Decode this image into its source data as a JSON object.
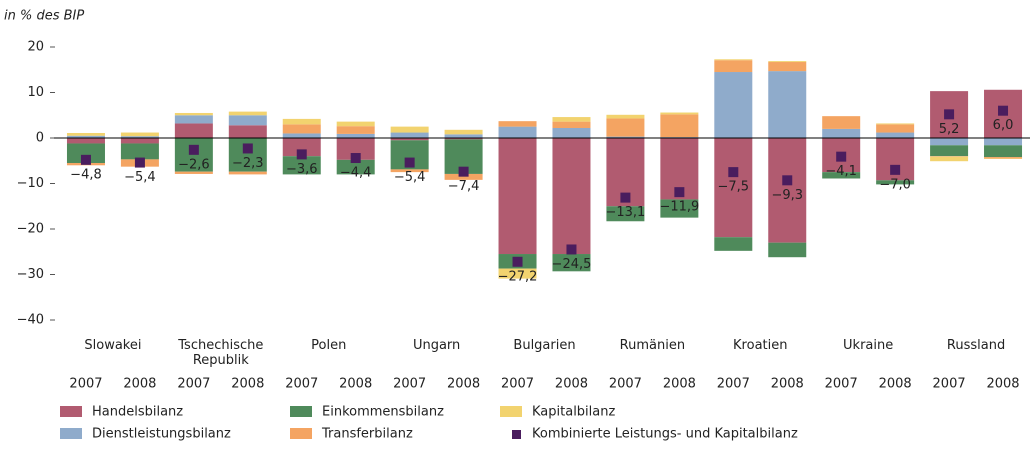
{
  "chart_data": {
    "type": "stacked_bar",
    "y_label": "in % des BIP",
    "groups": [
      "Slowakei",
      "Tschechische Republik",
      "Polen",
      "Ungarn",
      "Bulgarien",
      "Rumänien",
      "Kroatien",
      "Ukraine",
      "Russland"
    ],
    "categories": [
      "2007",
      "2008",
      "2007",
      "2008",
      "2007",
      "2008",
      "2007",
      "2008",
      "2007",
      "2008",
      "2007",
      "2008",
      "2007",
      "2008",
      "2007",
      "2008",
      "2007",
      "2008"
    ],
    "series": [
      {
        "name": "Handelsbilanz",
        "color": "#b15b70",
        "values": [
          -1.2,
          -1.2,
          3.2,
          2.8,
          -4.0,
          -4.8,
          -0.5,
          -0.3,
          -25.5,
          -25.5,
          -15.0,
          -13.5,
          -21.8,
          -23.0,
          -7.5,
          -9.3,
          10.3,
          10.6
        ]
      },
      {
        "name": "Dienstleistungsbilanz",
        "color": "#8fabcb",
        "values": [
          0.5,
          0.4,
          1.8,
          2.2,
          1.0,
          0.9,
          1.2,
          0.8,
          2.5,
          2.2,
          0.3,
          0.2,
          14.5,
          14.7,
          2.0,
          1.2,
          -1.6,
          -1.6
        ]
      },
      {
        "name": "Einkommensbilanz",
        "color": "#4f8a5b",
        "values": [
          -4.3,
          -3.5,
          -7.4,
          -7.4,
          -4.0,
          -3.2,
          -6.4,
          -7.6,
          -3.2,
          -3.8,
          -3.3,
          -4.0,
          -3.0,
          -3.2,
          -1.4,
          -0.9,
          -2.4,
          -2.6
        ]
      },
      {
        "name": "Transferbilanz",
        "color": "#f4a462",
        "values": [
          -0.5,
          -1.6,
          -0.5,
          -0.6,
          2.0,
          1.7,
          -0.6,
          -1.3,
          1.2,
          1.4,
          4.0,
          5.0,
          2.6,
          2.0,
          2.8,
          1.8,
          -0.1,
          -0.3
        ]
      },
      {
        "name": "Kapitalbilanz",
        "color": "#f2d36f",
        "values": [
          0.6,
          0.8,
          0.5,
          0.8,
          1.2,
          1.0,
          1.3,
          1.0,
          -2.2,
          1.0,
          0.8,
          0.4,
          0.2,
          0.2,
          0,
          0.2,
          -1.0,
          -0.1
        ]
      }
    ],
    "combined": {
      "name": "Kombinierte Leistungs- und Kapitalbilanz",
      "color": "#4a1d5e",
      "values": [
        -4.8,
        -5.4,
        -2.6,
        -2.3,
        -3.6,
        -4.4,
        -5.4,
        -7.4,
        -27.2,
        -24.5,
        -13.1,
        -11.9,
        -7.5,
        -9.3,
        -4.1,
        -7.0,
        5.2,
        6.0
      ],
      "value_labels": [
        "−4,8",
        "−5,4",
        "−2,6",
        "−2,3",
        "−3,6",
        "−4,4",
        "−5,4",
        "−7,4",
        "−27,2",
        "−24,5",
        "−13,1",
        "−11,9",
        "−7,5",
        "−9,3",
        "−4,1",
        "−7,0",
        "5,2",
        "6,0"
      ]
    },
    "ylim": [
      -40,
      20
    ],
    "yticks": [
      20,
      10,
      0,
      {
        "value": -10,
        "label": "−10"
      },
      {
        "value": -20,
        "label": "−20"
      },
      {
        "value": -30,
        "label": "−30"
      },
      {
        "value": -40,
        "label": "−40"
      }
    ],
    "grid": false
  }
}
